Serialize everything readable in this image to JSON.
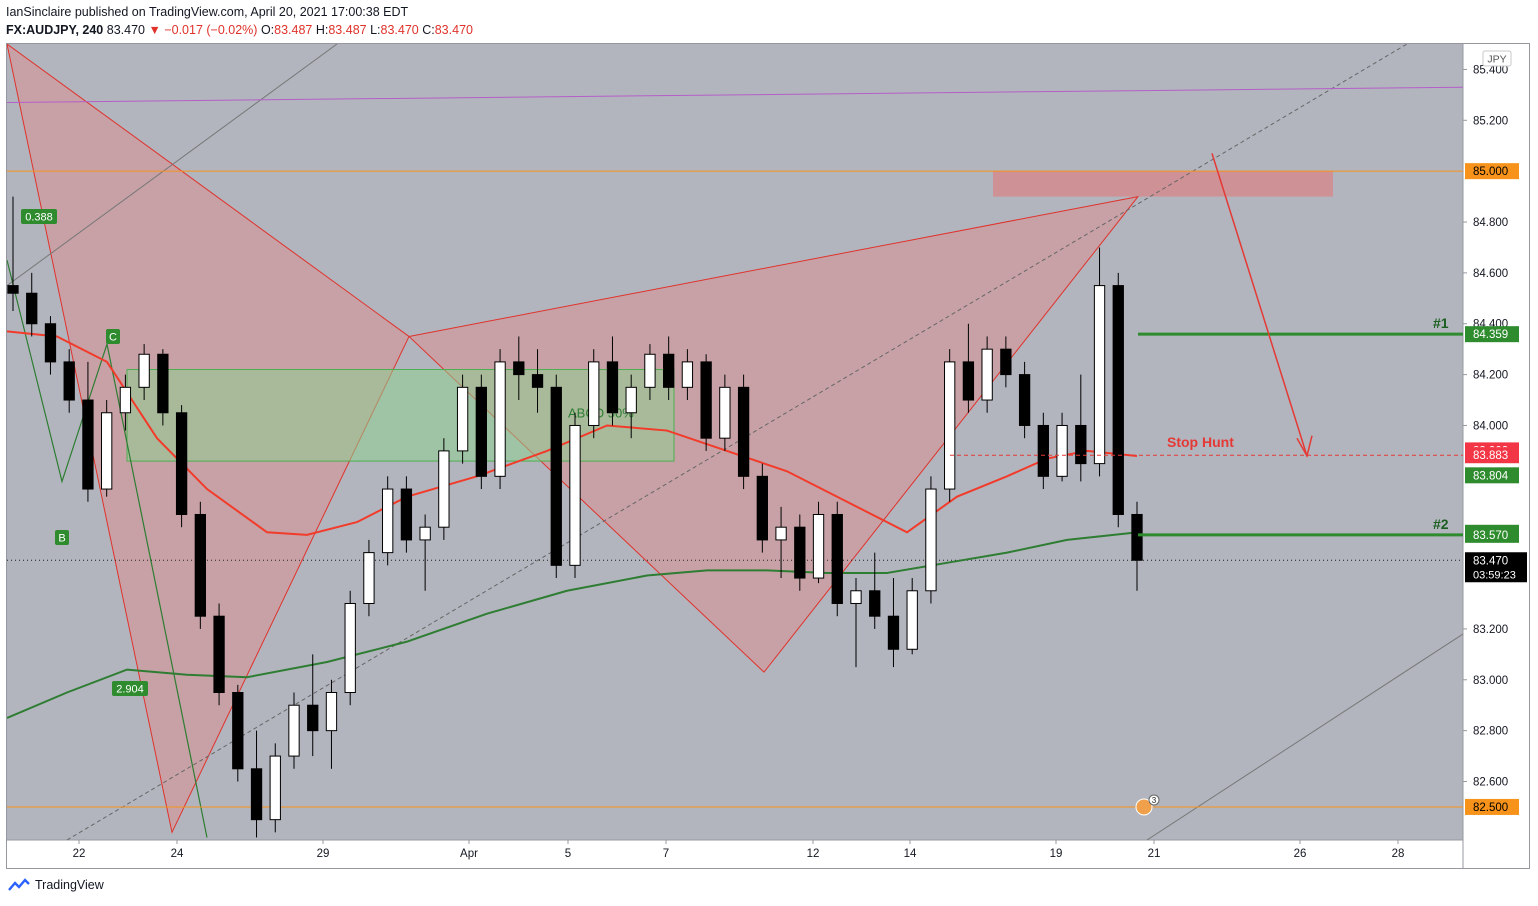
{
  "header": {
    "author": "IanSinclaire",
    "published_text": "published on TradingView.com, April 20, 2021 17:00:38 EDT",
    "symbol_interval": "FX:AUDJPY, 240",
    "last": "83.470",
    "change": "−0.017 (−0.02%)",
    "o_label": "O:",
    "o": "83.487",
    "h_label": "H:",
    "h": "83.487",
    "l_label": "L:",
    "l": "83.470",
    "c_label": "C:",
    "c": "83.470"
  },
  "footer": {
    "brand": "TradingView"
  },
  "colors": {
    "plot_bg": "#b2b5be",
    "axis_bg": "#ffffff",
    "up": "#ffffff",
    "down": "#000000",
    "ema_short": "#f23b2a",
    "ema_long": "#2e7d32",
    "level_orange": "#f7931a",
    "pattern_fill": "#e08a8a",
    "zone_green": "#8fd08f",
    "target_green": "#2e8b2e",
    "stop_red": "#e53935"
  },
  "chart_data": {
    "type": "candlestick",
    "symbol": "FX:AUDJPY",
    "interval": "240",
    "currency": "JPY",
    "ylim": [
      82.37,
      85.5
    ],
    "y_ticks": [
      "85.400",
      "85.200",
      "84.800",
      "84.600",
      "84.400",
      "84.200",
      "84.000",
      "83.200",
      "83.000",
      "82.800",
      "82.600"
    ],
    "x_ticks": [
      "22",
      "24",
      "29",
      "Apr",
      "5",
      "7",
      "12",
      "14",
      "19",
      "21",
      "26",
      "28"
    ],
    "last_price": "83.470",
    "countdown": "03:59:23",
    "price_labels": [
      {
        "value": 85.0,
        "text": "85.000",
        "style": "orange"
      },
      {
        "value": 84.359,
        "text": "84.359",
        "style": "green"
      },
      {
        "value": 83.902,
        "text": "83.902",
        "style": "red"
      },
      {
        "value": 83.883,
        "text": "83.883",
        "style": "red"
      },
      {
        "value": 83.804,
        "text": "83.804",
        "style": "green"
      },
      {
        "value": 83.578,
        "text": "83.578",
        "style": "green"
      },
      {
        "value": 83.57,
        "text": "83.570",
        "style": "green"
      },
      {
        "value": 82.5,
        "text": "82.500",
        "style": "orange"
      }
    ],
    "horizontal_levels": [
      {
        "value": 85.0,
        "color": "orange"
      },
      {
        "value": 82.5,
        "color": "orange"
      }
    ],
    "targets": [
      {
        "label": "#1",
        "value": 84.359
      },
      {
        "label": "#2",
        "value": 83.57
      }
    ],
    "stop_hunt": {
      "label": "Stop Hunt",
      "value": 83.883
    },
    "pattern_labels": {
      "a": "0.388",
      "b": "B",
      "c": "C",
      "d": "2.904"
    },
    "abcd_label": "ABCD 50%",
    "zone": {
      "top": 84.22,
      "bottom": 83.86,
      "label": "ABCD 50%"
    },
    "sell_zone": {
      "top": 85.0,
      "bottom": 84.9
    },
    "event_badge": "3",
    "candles_major": [
      [
        84.55,
        84.9,
        84.45,
        84.52
      ],
      [
        84.52,
        84.6,
        84.35,
        84.4
      ],
      [
        84.4,
        84.43,
        84.2,
        84.25
      ],
      [
        84.25,
        84.3,
        84.05,
        84.1
      ],
      [
        84.1,
        84.25,
        83.7,
        83.75
      ],
      [
        83.75,
        84.1,
        83.72,
        84.05
      ],
      [
        84.05,
        84.2,
        83.98,
        84.15
      ],
      [
        84.15,
        84.32,
        84.1,
        84.28
      ],
      [
        84.28,
        84.3,
        84.0,
        84.05
      ],
      [
        84.05,
        84.08,
        83.6,
        83.65
      ],
      [
        83.65,
        83.7,
        83.2,
        83.25
      ],
      [
        83.25,
        83.3,
        82.9,
        82.95
      ],
      [
        82.95,
        82.98,
        82.6,
        82.65
      ],
      [
        82.65,
        82.8,
        82.38,
        82.45
      ],
      [
        82.45,
        82.75,
        82.4,
        82.7
      ],
      [
        82.7,
        82.95,
        82.65,
        82.9
      ],
      [
        82.9,
        83.1,
        82.7,
        82.8
      ],
      [
        82.8,
        83.0,
        82.65,
        82.95
      ],
      [
        82.95,
        83.35,
        82.9,
        83.3
      ],
      [
        83.3,
        83.55,
        83.25,
        83.5
      ],
      [
        83.5,
        83.8,
        83.45,
        83.75
      ],
      [
        83.75,
        83.8,
        83.5,
        83.55
      ],
      [
        83.55,
        83.65,
        83.35,
        83.6
      ],
      [
        83.6,
        83.95,
        83.55,
        83.9
      ],
      [
        83.9,
        84.2,
        83.85,
        84.15
      ],
      [
        84.15,
        84.2,
        83.75,
        83.8
      ],
      [
        83.8,
        84.3,
        83.75,
        84.25
      ],
      [
        84.25,
        84.35,
        84.1,
        84.2
      ],
      [
        84.2,
        84.3,
        84.05,
        84.15
      ],
      [
        84.15,
        84.2,
        83.4,
        83.45
      ],
      [
        83.45,
        84.05,
        83.4,
        84.0
      ],
      [
        84.0,
        84.3,
        83.95,
        84.25
      ],
      [
        84.25,
        84.35,
        84.0,
        84.05
      ],
      [
        84.05,
        84.2,
        83.95,
        84.15
      ],
      [
        84.15,
        84.32,
        84.1,
        84.28
      ],
      [
        84.28,
        84.35,
        84.1,
        84.15
      ],
      [
        84.15,
        84.3,
        84.1,
        84.25
      ],
      [
        84.25,
        84.28,
        83.9,
        83.95
      ],
      [
        83.95,
        84.2,
        83.9,
        84.15
      ],
      [
        84.15,
        84.2,
        83.75,
        83.8
      ],
      [
        83.8,
        83.85,
        83.5,
        83.55
      ],
      [
        83.55,
        83.68,
        83.4,
        83.6
      ],
      [
        83.6,
        83.65,
        83.35,
        83.4
      ],
      [
        83.4,
        83.7,
        83.38,
        83.65
      ],
      [
        83.65,
        83.7,
        83.25,
        83.3
      ],
      [
        83.3,
        83.4,
        83.05,
        83.35
      ],
      [
        83.35,
        83.5,
        83.2,
        83.25
      ],
      [
        83.25,
        83.4,
        83.05,
        83.12
      ],
      [
        83.12,
        83.4,
        83.1,
        83.35
      ],
      [
        83.35,
        83.8,
        83.3,
        83.75
      ],
      [
        83.75,
        84.3,
        83.7,
        84.25
      ],
      [
        84.25,
        84.4,
        84.05,
        84.1
      ],
      [
        84.1,
        84.35,
        84.05,
        84.3
      ],
      [
        84.3,
        84.35,
        84.15,
        84.2
      ],
      [
        84.2,
        84.25,
        83.95,
        84.0
      ],
      [
        84.0,
        84.05,
        83.75,
        83.8
      ],
      [
        83.8,
        84.05,
        83.78,
        84.0
      ],
      [
        84.0,
        84.2,
        83.78,
        83.85
      ],
      [
        83.85,
        84.7,
        83.8,
        84.55
      ],
      [
        84.55,
        84.6,
        83.6,
        83.65
      ],
      [
        83.65,
        83.7,
        83.35,
        83.47
      ]
    ]
  }
}
